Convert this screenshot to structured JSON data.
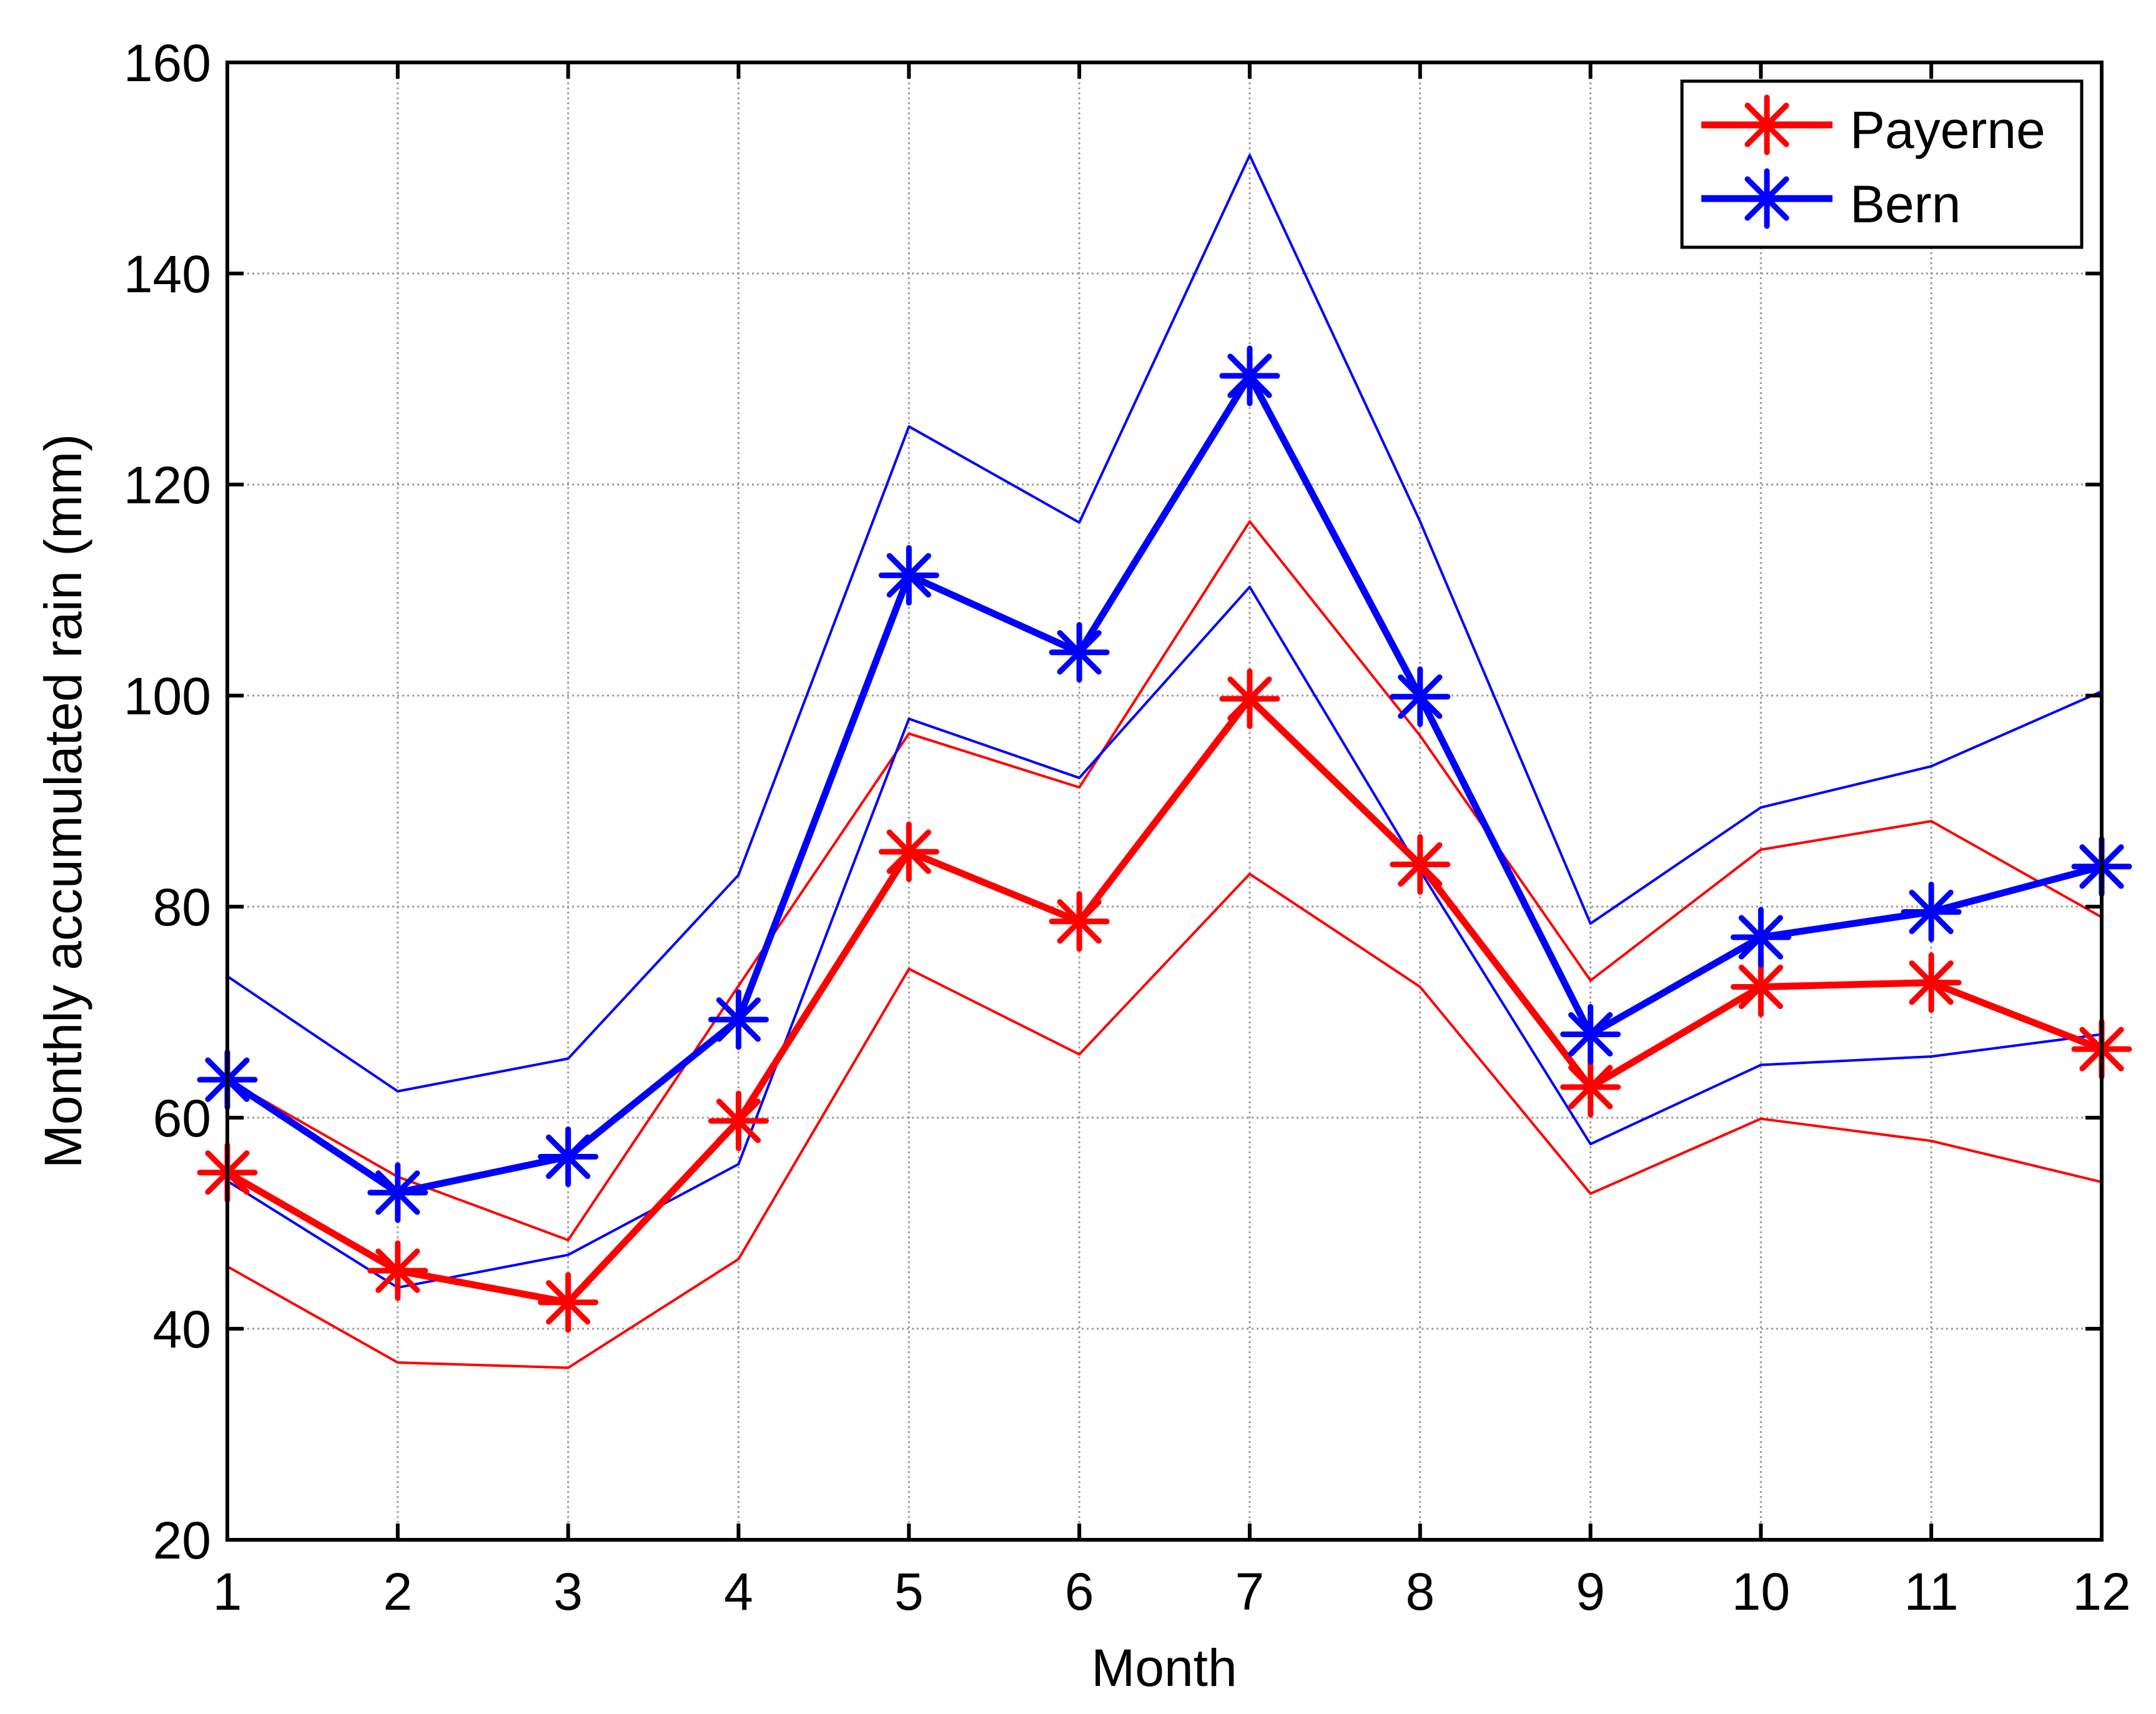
{
  "chart_data": {
    "type": "line",
    "title": "",
    "xlabel": "Month",
    "ylabel": "Monthly accumulated rain (mm)",
    "xlim": [
      1,
      12
    ],
    "ylim": [
      20,
      160
    ],
    "xticks": [
      1,
      2,
      3,
      4,
      5,
      6,
      7,
      8,
      9,
      10,
      11,
      12
    ],
    "yticks": [
      20,
      40,
      60,
      80,
      100,
      120,
      140,
      160
    ],
    "grid": true,
    "legend_position": "top-right",
    "x": [
      1,
      2,
      3,
      4,
      5,
      6,
      7,
      8,
      9,
      10,
      11,
      12
    ],
    "series": [
      {
        "name": "Payerne",
        "color": "#ff0000",
        "marker": "asterisk",
        "mean": [
          54.8,
          45.5,
          42.5,
          59.7,
          85.2,
          78.6,
          99.7,
          84.0,
          62.9,
          72.4,
          72.8,
          66.5
        ],
        "upper": [
          63.6,
          54.4,
          48.4,
          72.5,
          96.4,
          91.3,
          116.5,
          96.2,
          73.0,
          85.4,
          88.1,
          79.0
        ],
        "lower": [
          45.9,
          36.8,
          36.3,
          46.6,
          74.1,
          66.0,
          83.1,
          72.4,
          52.8,
          59.9,
          57.8,
          53.9
        ]
      },
      {
        "name": "Bern",
        "color": "#0000ff",
        "marker": "asterisk",
        "mean": [
          63.6,
          52.9,
          56.3,
          69.3,
          111.4,
          104.1,
          130.3,
          99.9,
          67.9,
          77.1,
          79.5,
          83.8
        ],
        "upper": [
          73.4,
          62.5,
          65.6,
          83.0,
          125.5,
          116.4,
          151.2,
          116.5,
          78.4,
          89.4,
          93.3,
          100.4
        ],
        "lower": [
          54.0,
          43.9,
          47.0,
          55.6,
          97.8,
          92.2,
          110.3,
          83.4,
          57.5,
          65.0,
          65.8,
          67.9
        ]
      }
    ]
  }
}
